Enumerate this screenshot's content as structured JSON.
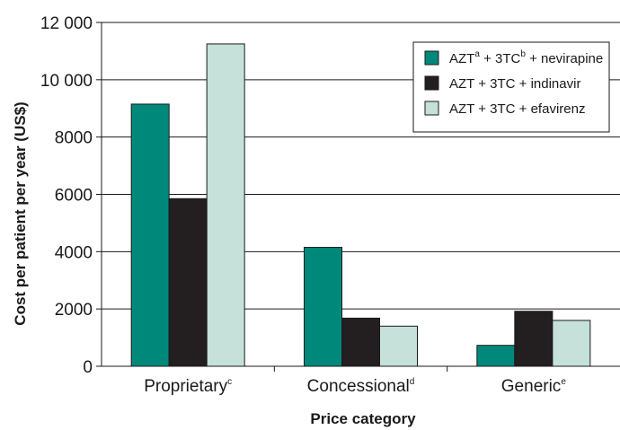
{
  "chart_data": {
    "type": "bar",
    "title": "",
    "xlabel": "Price category",
    "ylabel": "Cost per patient per year (US$)",
    "ylim": [
      0,
      12000
    ],
    "yticks": [
      0,
      2000,
      4000,
      6000,
      8000,
      10000,
      12000
    ],
    "ytick_labels": [
      "0",
      "2000",
      "4000",
      "6000",
      "8000",
      "10 000",
      "12 000"
    ],
    "grid": "horizontal",
    "legend_position": "top-right",
    "categories": [
      {
        "label": "Proprietary",
        "sup": "c"
      },
      {
        "label": "Concessional",
        "sup": "d"
      },
      {
        "label": "Generic",
        "sup": "e"
      }
    ],
    "series": [
      {
        "name": "AZT + 3TC + nevirapine",
        "color": "#00897b",
        "legend": [
          {
            "t": "AZT"
          },
          {
            "t": "a",
            "sup": true
          },
          {
            "t": " + 3TC"
          },
          {
            "t": "b",
            "sup": true
          },
          {
            "t": " + nevirapine"
          }
        ],
        "values": [
          9150,
          4150,
          730
        ]
      },
      {
        "name": "AZT + 3TC + indinavir",
        "color": "#231f20",
        "legend": [
          {
            "t": "AZT + 3TC + indinavir"
          }
        ],
        "values": [
          5850,
          1680,
          1920
        ]
      },
      {
        "name": "AZT + 3TC + efavirenz",
        "color": "#c6e0da",
        "legend": [
          {
            "t": "AZT + 3TC + efavirenz"
          }
        ],
        "values": [
          11250,
          1400,
          1600
        ]
      }
    ]
  }
}
